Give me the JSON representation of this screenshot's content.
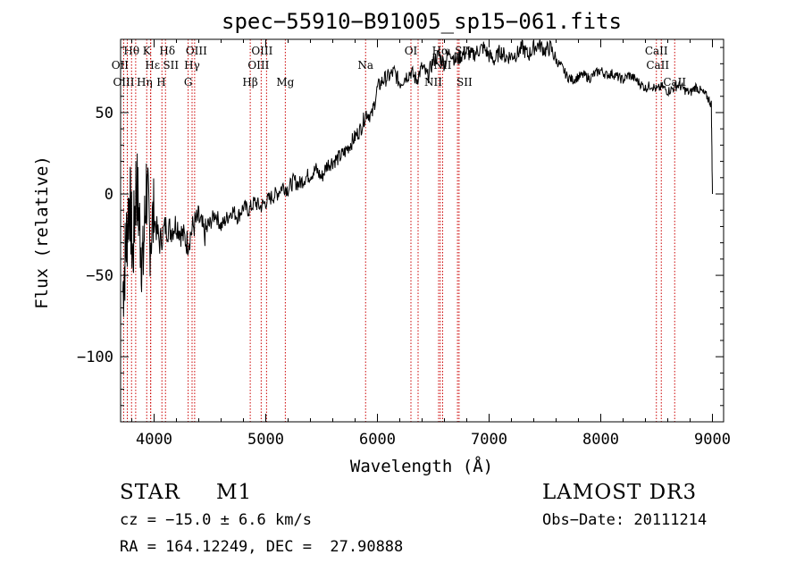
{
  "chart_data": {
    "type": "line",
    "title": "spec−55910−B91005_sp15−061.fits",
    "xlabel": "Wavelength (Å)",
    "ylabel": "Flux (relative)",
    "xlim": [
      3700,
      9100
    ],
    "ylim": [
      -140,
      95
    ],
    "x_ticks": [
      4000,
      5000,
      6000,
      7000,
      8000,
      9000
    ],
    "y_ticks": [
      -100,
      -50,
      0,
      50
    ],
    "x_tick_labels": [
      "4000",
      "5000",
      "6000",
      "7000",
      "8000",
      "9000"
    ],
    "y_tick_labels": [
      "−100",
      "−50",
      "0",
      "50"
    ],
    "series": [
      {
        "name": "spectrum",
        "x": [
          3720,
          3750,
          3780,
          3810,
          3840,
          3870,
          3900,
          3930,
          3960,
          4000,
          4050,
          4100,
          4150,
          4200,
          4250,
          4300,
          4350,
          4400,
          4450,
          4500,
          4550,
          4600,
          4650,
          4700,
          4750,
          4800,
          4850,
          4900,
          4950,
          5000,
          5050,
          5100,
          5150,
          5200,
          5250,
          5300,
          5350,
          5400,
          5450,
          5500,
          5550,
          5600,
          5650,
          5700,
          5750,
          5800,
          5850,
          5900,
          5950,
          6000,
          6050,
          6100,
          6150,
          6200,
          6250,
          6300,
          6350,
          6400,
          6450,
          6500,
          6550,
          6600,
          6650,
          6700,
          6750,
          6800,
          6850,
          6900,
          6950,
          7000,
          7050,
          7100,
          7150,
          7200,
          7250,
          7300,
          7350,
          7400,
          7450,
          7500,
          7550,
          7600,
          7650,
          7700,
          7750,
          7800,
          7850,
          7900,
          7950,
          8000,
          8050,
          8100,
          8150,
          8200,
          8250,
          8300,
          8350,
          8400,
          8450,
          8500,
          8550,
          8600,
          8650,
          8700,
          8750,
          8800,
          8850,
          8900,
          8950,
          8990,
          9000
        ],
        "y": [
          -60,
          -30,
          0,
          -40,
          10,
          -20,
          -45,
          5,
          -25,
          -15,
          -30,
          -20,
          -22,
          -18,
          -25,
          -30,
          -20,
          -15,
          -25,
          -18,
          -12,
          -20,
          -15,
          -10,
          -14,
          -8,
          -10,
          -5,
          -8,
          -5,
          -2,
          0,
          5,
          3,
          8,
          6,
          10,
          12,
          15,
          10,
          18,
          20,
          22,
          25,
          30,
          35,
          40,
          50,
          48,
          65,
          70,
          72,
          75,
          68,
          72,
          75,
          70,
          78,
          72,
          82,
          85,
          80,
          88,
          82,
          85,
          87,
          85,
          88,
          90,
          85,
          82,
          88,
          84,
          85,
          86,
          90,
          85,
          90,
          92,
          88,
          90,
          82,
          78,
          72,
          70,
          72,
          73,
          71,
          74,
          76,
          73,
          74,
          72,
          70,
          73,
          71,
          68,
          65,
          67,
          64,
          66,
          63,
          65,
          67,
          64,
          62,
          66,
          63,
          60,
          55,
          0
        ]
      }
    ],
    "lines": [
      {
        "name": "Hθ",
        "wavelength": 3798
      },
      {
        "name": "OII",
        "wavelength": 3727
      },
      {
        "name": "OIII",
        "wavelength": 3760
      },
      {
        "name": "K",
        "wavelength": 3934
      },
      {
        "name": "Hη",
        "wavelength": 3835
      },
      {
        "name": "Hε",
        "wavelength": 3970
      },
      {
        "name": "SII",
        "wavelength": 4070
      },
      {
        "name": "H",
        "wavelength": 3968
      },
      {
        "name": "Hδ",
        "wavelength": 4102
      },
      {
        "name": "OIII",
        "wavelength": 4363
      },
      {
        "name": "Hγ",
        "wavelength": 4340
      },
      {
        "name": "G",
        "wavelength": 4305
      },
      {
        "name": "Hβ",
        "wavelength": 4861
      },
      {
        "name": "OIII",
        "wavelength": 5007
      },
      {
        "name": "OIII",
        "wavelength": 4959
      },
      {
        "name": "Mg",
        "wavelength": 5175
      },
      {
        "name": "Na",
        "wavelength": 5894
      },
      {
        "name": "OI",
        "wavelength": 6300
      },
      {
        "name": "OI",
        "wavelength": 6364
      },
      {
        "name": "Hα",
        "wavelength": 6563
      },
      {
        "name": "NII",
        "wavelength": 6548
      },
      {
        "name": "NII",
        "wavelength": 6584
      },
      {
        "name": "SII",
        "wavelength": 6717
      },
      {
        "name": "SII",
        "wavelength": 6731
      },
      {
        "name": "CaII",
        "wavelength": 8498
      },
      {
        "name": "CaII",
        "wavelength": 8542
      },
      {
        "name": "CaII",
        "wavelength": 8662
      }
    ]
  },
  "footer": {
    "object_type": "STAR",
    "subclass": "M1",
    "redshift": "cz = −15.0 ± 6.6 km/s",
    "coords": "RA = 164.12249, DEC =  27.90888",
    "survey": "LAMOST DR3",
    "obs_date": "Obs−Date: 20111214"
  },
  "colors": {
    "line": "#000000",
    "marker_lines": "#cc0000",
    "background": "#ffffff"
  }
}
